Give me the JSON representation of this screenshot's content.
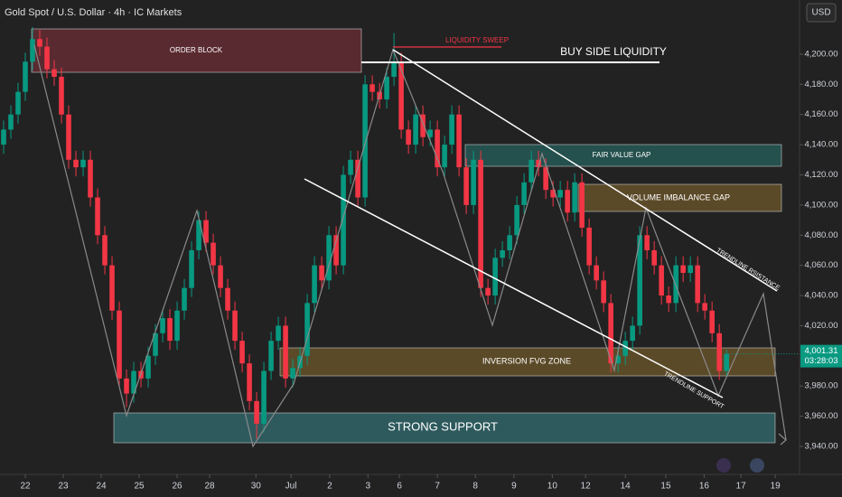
{
  "chart_data": {
    "type": "candlestick",
    "title": "Gold Spot / U.S. Dollar · 4h · IC Markets",
    "currency": "USD",
    "up_color": "#089981",
    "down_color": "#f23645",
    "series": [
      {
        "open": [
          4140,
          4150,
          4160,
          4175,
          4195,
          4210,
          4205,
          4190,
          4185,
          4160,
          4130,
          4125,
          4130,
          4105,
          4080,
          4060,
          4030,
          3985,
          3975,
          3990,
          3985,
          4000,
          4015,
          4025,
          4010,
          4030,
          4045,
          4070,
          4090,
          4075,
          4060,
          4045,
          4030,
          4010,
          3995,
          3970,
          3955,
          3990,
          4010,
          4020,
          3985,
          3992,
          4000,
          4035,
          4060,
          4050,
          4080,
          4060,
          4120,
          4130,
          4105,
          4180,
          4175,
          4170,
          4185,
          4195,
          4150,
          4140,
          4160,
          4145,
          4150,
          4125,
          4140,
          4160,
          4125,
          4100,
          4130,
          4045,
          4040,
          4065,
          4070,
          4080,
          4100,
          4115,
          4130,
          4125,
          4110,
          4105,
          4110,
          4095,
          4115,
          4085,
          4060,
          4050,
          4035,
          3995,
          4000,
          4010,
          4020,
          4080,
          4070,
          4060,
          4040,
          4035,
          4060,
          4055,
          4060,
          4035,
          4030,
          4015,
          3990
        ],
        "high": [
          4156,
          4166,
          4181,
          4201,
          4218,
          4216,
          4211,
          4196,
          4191,
          4166,
          4136,
          4136,
          4136,
          4111,
          4086,
          4066,
          4036,
          3991,
          3996,
          3996,
          4006,
          4021,
          4031,
          4031,
          4036,
          4051,
          4076,
          4096,
          4096,
          4081,
          4066,
          4051,
          4036,
          4016,
          4001,
          3976,
          3996,
          4016,
          4026,
          4026,
          3998,
          4006,
          4041,
          4066,
          4066,
          4086,
          4086,
          4126,
          4136,
          4136,
          4186,
          4186,
          4181,
          4191,
          4214,
          4201,
          4156,
          4166,
          4166,
          4156,
          4156,
          4146,
          4166,
          4166,
          4131,
          4136,
          4136,
          4051,
          4071,
          4076,
          4086,
          4106,
          4121,
          4136,
          4136,
          4131,
          4116,
          4116,
          4116,
          4121,
          4121,
          4091,
          4066,
          4056,
          4041,
          4006,
          4016,
          4026,
          4086,
          4086,
          4076,
          4066,
          4046,
          4066,
          4066,
          4066,
          4066,
          4041,
          4036,
          4021,
          4004
        ],
        "low": [
          4134,
          4144,
          4154,
          4169,
          4189,
          4199,
          4184,
          4179,
          4154,
          4124,
          4119,
          4119,
          4099,
          4074,
          4054,
          4024,
          3979,
          3966,
          3969,
          3979,
          3979,
          3994,
          4009,
          4004,
          4004,
          4024,
          4039,
          4064,
          4069,
          4054,
          4039,
          4024,
          4004,
          3989,
          3964,
          3945,
          3949,
          3984,
          4004,
          3979,
          3979,
          3986,
          3994,
          4029,
          4044,
          4044,
          4054,
          4054,
          4114,
          4099,
          4099,
          4169,
          4164,
          4164,
          4179,
          4144,
          4134,
          4134,
          4139,
          4139,
          4119,
          4119,
          4134,
          4119,
          4094,
          4094,
          4039,
          4034,
          4034,
          4059,
          4064,
          4074,
          4094,
          4109,
          4119,
          4104,
          4099,
          4099,
          4089,
          4089,
          4079,
          4054,
          4044,
          4029,
          3989,
          3989,
          3994,
          4004,
          4014,
          4064,
          4054,
          4034,
          4029,
          4029,
          4049,
          4049,
          4029,
          4024,
          4009,
          3984,
          3986
        ],
        "close": [
          4150,
          4160,
          4175,
          4195,
          4210,
          4205,
          4190,
          4185,
          4160,
          4130,
          4125,
          4130,
          4105,
          4080,
          4060,
          4030,
          3985,
          3975,
          3990,
          3985,
          4000,
          4015,
          4025,
          4010,
          4030,
          4045,
          4070,
          4090,
          4075,
          4060,
          4045,
          4030,
          4010,
          3995,
          3970,
          3955,
          3990,
          4010,
          4020,
          3985,
          3992,
          4000,
          4035,
          4060,
          4050,
          4080,
          4060,
          4120,
          4130,
          4105,
          4180,
          4175,
          4170,
          4185,
          4195,
          4150,
          4140,
          4160,
          4145,
          4150,
          4125,
          4140,
          4160,
          4125,
          4100,
          4130,
          4045,
          4040,
          4065,
          4070,
          4080,
          4100,
          4115,
          4130,
          4125,
          4110,
          4105,
          4110,
          4095,
          4115,
          4085,
          4060,
          4050,
          4035,
          3995,
          4000,
          4010,
          4020,
          4080,
          4070,
          4060,
          4040,
          4035,
          4060,
          4055,
          4060,
          4035,
          4030,
          4015,
          3990,
          4001.31
        ]
      }
    ],
    "last_price": {
      "value": 4001.31,
      "label": "4,001.31"
    },
    "countdown": "03:28:03",
    "ylim": [
      3924.4,
      4235.9
    ],
    "yticks": [
      {
        "value": 4200,
        "label": "4,200.00"
      },
      {
        "value": 4180,
        "label": "4,180.00"
      },
      {
        "value": 4160,
        "label": "4,160.00"
      },
      {
        "value": 4140,
        "label": "4,140.00"
      },
      {
        "value": 4120,
        "label": "4,120.00"
      },
      {
        "value": 4100,
        "label": "4,100.00"
      },
      {
        "value": 4080,
        "label": "4,080.00"
      },
      {
        "value": 4060,
        "label": "4,060.00"
      },
      {
        "value": 4040,
        "label": "4,040.00"
      },
      {
        "value": 4020,
        "label": "4,020.00"
      },
      {
        "value": 3980,
        "label": "3,980.00"
      },
      {
        "value": 3960,
        "label": "3,960.00"
      },
      {
        "value": 3940,
        "label": "3,940.00"
      }
    ],
    "xlim": [
      -0.5,
      110.1
    ],
    "xticks": [
      {
        "value": 3,
        "label": "22"
      },
      {
        "value": 8.25,
        "label": "23"
      },
      {
        "value": 13.5,
        "label": "24"
      },
      {
        "value": 18.75,
        "label": "25"
      },
      {
        "value": 24,
        "label": "26"
      },
      {
        "value": 28.5,
        "label": "28"
      },
      {
        "value": 34.9,
        "label": "30"
      },
      {
        "value": 39.75,
        "label": "Jul"
      },
      {
        "value": 45.1,
        "label": "2"
      },
      {
        "value": 50.4,
        "label": "3"
      },
      {
        "value": 54.75,
        "label": "6"
      },
      {
        "value": 60,
        "label": "7"
      },
      {
        "value": 65.25,
        "label": "8"
      },
      {
        "value": 70.6,
        "label": "9"
      },
      {
        "value": 75.9,
        "label": "10"
      },
      {
        "value": 80.5,
        "label": "12"
      },
      {
        "value": 86,
        "label": "14"
      },
      {
        "value": 91.6,
        "label": "15"
      },
      {
        "value": 96.9,
        "label": "16"
      },
      {
        "value": 102,
        "label": "17"
      },
      {
        "value": 106.75,
        "label": "19"
      }
    ],
    "grid": false,
    "annotations": [
      "ORDER BLOCK",
      "LIQUIDITY SWEEP",
      "BUY SIDE LIQUIDITY",
      "FAIR VALUE GAP",
      "VOLUME IMBALANCE GAP",
      "TRENDLINE RSISTANCE",
      "INVERSION FVG ZONE",
      "TRENDLINE SUPPORT",
      "STRONG SUPPORT"
    ]
  }
}
